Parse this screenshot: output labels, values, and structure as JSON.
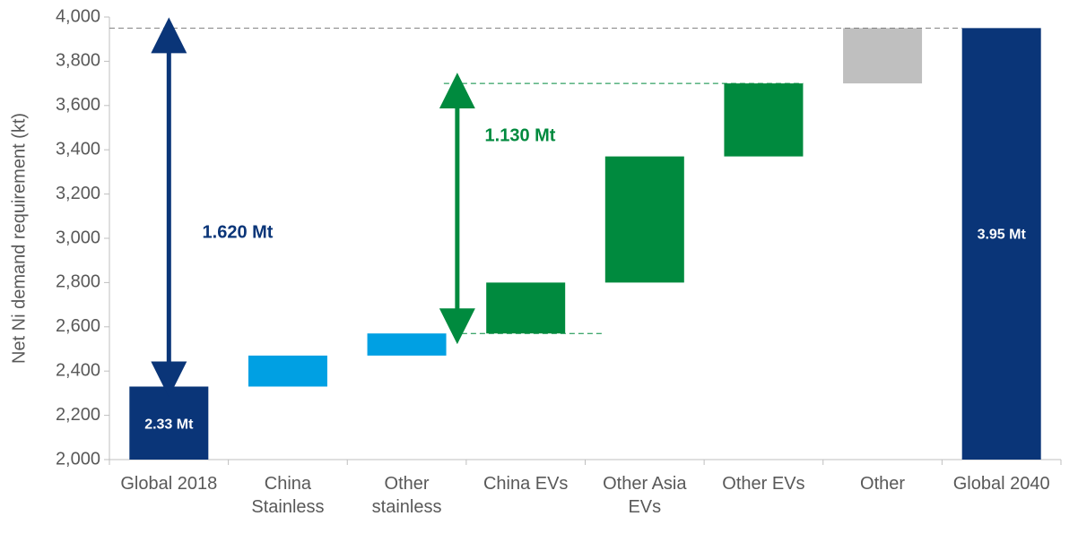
{
  "chart_data": {
    "type": "waterfall",
    "y_label": "Net Ni demand requirement (kt)",
    "categories": [
      "Global 2018",
      "China\nStainless",
      "Other\nstainless",
      "China EVs",
      "Other Asia\nEVs",
      "Other EVs",
      "Other",
      "Global 2040"
    ],
    "values": [
      2330,
      140,
      100,
      230,
      570,
      330,
      250,
      3950
    ],
    "value_labels": [
      "2.33 Mt",
      null,
      null,
      null,
      null,
      null,
      null,
      "3.95 Mt"
    ],
    "totals": [
      true,
      false,
      false,
      false,
      false,
      false,
      false,
      true
    ],
    "colors": [
      "#0a3578",
      "#00a0e3",
      "#00a0e3",
      "#008a3e",
      "#008a3e",
      "#008a3e",
      "#bfbfbf",
      "#0a3578"
    ],
    "ylim": [
      2000,
      4000
    ],
    "yticks": [
      {
        "value": 2000,
        "label": "2,000"
      },
      {
        "value": 2200,
        "label": "2,200"
      },
      {
        "value": 2400,
        "label": "2,400"
      },
      {
        "value": 2600,
        "label": "2,600"
      },
      {
        "value": 2800,
        "label": "2,800"
      },
      {
        "value": 3000,
        "label": "3,000"
      },
      {
        "value": 3200,
        "label": "3,200"
      },
      {
        "value": 3400,
        "label": "3,400"
      },
      {
        "value": 3600,
        "label": "3,600"
      },
      {
        "value": 3800,
        "label": "3,800"
      },
      {
        "value": 4000,
        "label": "4,000"
      }
    ],
    "annotations": [
      {
        "text": "1.620 Mt",
        "color": "#0a3578"
      },
      {
        "text": "1.130 Mt",
        "color": "#008a3e"
      }
    ]
  }
}
